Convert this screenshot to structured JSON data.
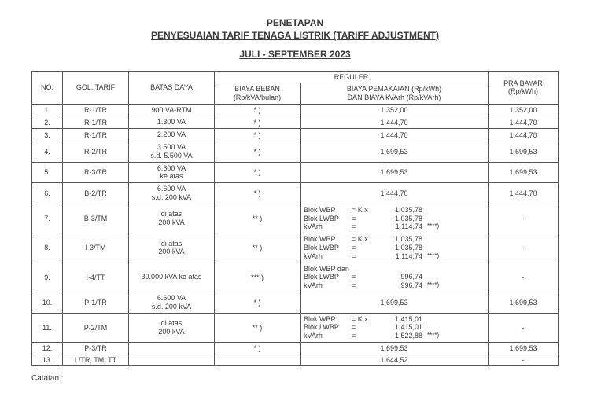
{
  "header": {
    "line1": "PENETAPAN",
    "line2": "PENYESUAIAN TARIF TENAGA LISTRIK (TARIFF ADJUSTMENT)",
    "subtitle": "JULI - SEPTEMBER 2023"
  },
  "columns": {
    "no": "NO.",
    "gol": "GOL. TARIF",
    "daya": "BATAS DAYA",
    "reguler": "REGULER",
    "beban": "BIAYA BEBAN\n(Rp/kVA/bulan)",
    "pakai": "BIAYA PEMAKAIAN (Rp/kWh)\nDAN  BIAYA kVArh (Rp/kVArh)",
    "pra": "PRA BAYAR\n(Rp/kWh)"
  },
  "rows": [
    {
      "no": "1.",
      "gol": "R-1/TR",
      "daya": "900 VA-RTM",
      "beban": "* )",
      "usage_simple": "1.352,00",
      "pra": "1.352,00"
    },
    {
      "no": "2.",
      "gol": "R-1/TR",
      "daya": "1.300 VA",
      "beban": "* )",
      "usage_simple": "1.444,70",
      "pra": "1.444,70"
    },
    {
      "no": "3.",
      "gol": "R-1/TR",
      "daya": "2.200 VA",
      "beban": "* )",
      "usage_simple": "1.444,70",
      "pra": "1.444,70"
    },
    {
      "no": "4.",
      "gol": "R-2/TR",
      "daya": "3.500 VA\ns.d. 5.500 VA",
      "beban": "* )",
      "usage_simple": "1.699,53",
      "pra": "1.699,53"
    },
    {
      "no": "5.",
      "gol": "R-3/TR",
      "daya": "6.600 VA\nke atas",
      "beban": "* )",
      "usage_simple": "1.699,53",
      "pra": "1.699,53"
    },
    {
      "no": "6.",
      "gol": "B-2/TR",
      "daya": "6.600 VA\ns.d. 200 kVA",
      "beban": "* )",
      "usage_simple": "1.444,70",
      "pra": "1.444,70"
    },
    {
      "no": "7.",
      "gol": "B-3/TM",
      "daya": "di atas\n200 kVA",
      "beban": "** )",
      "usage_block": [
        {
          "label": "Blok WBP",
          "eq": "= K x",
          "val": "1.035,78"
        },
        {
          "label": "Blok LWBP",
          "eq": "=",
          "val": "1.035,78"
        },
        {
          "label": "kVArh",
          "eq": "=",
          "val": "1.114,74",
          "note": "****)"
        }
      ],
      "pra": "-"
    },
    {
      "no": "8.",
      "gol": "I-3/TM",
      "daya": "di atas\n200 kVA",
      "beban": "** )",
      "usage_block": [
        {
          "label": "Blok WBP",
          "eq": "= K x",
          "val": "1.035,78"
        },
        {
          "label": "Blok LWBP",
          "eq": "=",
          "val": "1.035,78"
        },
        {
          "label": "kVArh",
          "eq": "=",
          "val": "1.114,74",
          "note": "****)"
        }
      ],
      "pra": "-"
    },
    {
      "no": "9.",
      "gol": "I-4/TT",
      "daya": "30.000 kVA ke atas",
      "beban": "*** )",
      "usage_block": [
        {
          "label": "Blok WBP dan",
          "eq": "",
          "val": ""
        },
        {
          "label": "Blok LWBP",
          "eq": "=",
          "val": "996,74"
        },
        {
          "label": "kVArh",
          "eq": "=",
          "val": "996,74",
          "note": "****)"
        }
      ],
      "pra": "-"
    },
    {
      "no": "10.",
      "gol": "P-1/TR",
      "daya": "6.600 VA\ns.d. 200 kVA",
      "beban": "* )",
      "usage_simple": "1.699,53",
      "pra": "1.699,53"
    },
    {
      "no": "11.",
      "gol": "P-2/TM",
      "daya": "di atas\n200 kVA",
      "beban": "** )",
      "usage_block": [
        {
          "label": "Blok WBP",
          "eq": "= K x",
          "val": "1.415,01"
        },
        {
          "label": "Blok LWBP",
          "eq": "=",
          "val": "1.415,01"
        },
        {
          "label": "kVArh",
          "eq": "=",
          "val": "1.522,88",
          "note": "****)"
        }
      ],
      "pra": "-"
    },
    {
      "no": "12.",
      "gol": "P-3/TR",
      "daya": "",
      "beban": "* )",
      "usage_simple": "1.699,53",
      "pra": "1.699,53"
    },
    {
      "no": "13.",
      "gol": "L/TR, TM, TT",
      "daya": "",
      "beban": "",
      "usage_simple": "1.644,52",
      "pra": "-"
    }
  ],
  "footer": {
    "catatan": "Catatan :"
  }
}
